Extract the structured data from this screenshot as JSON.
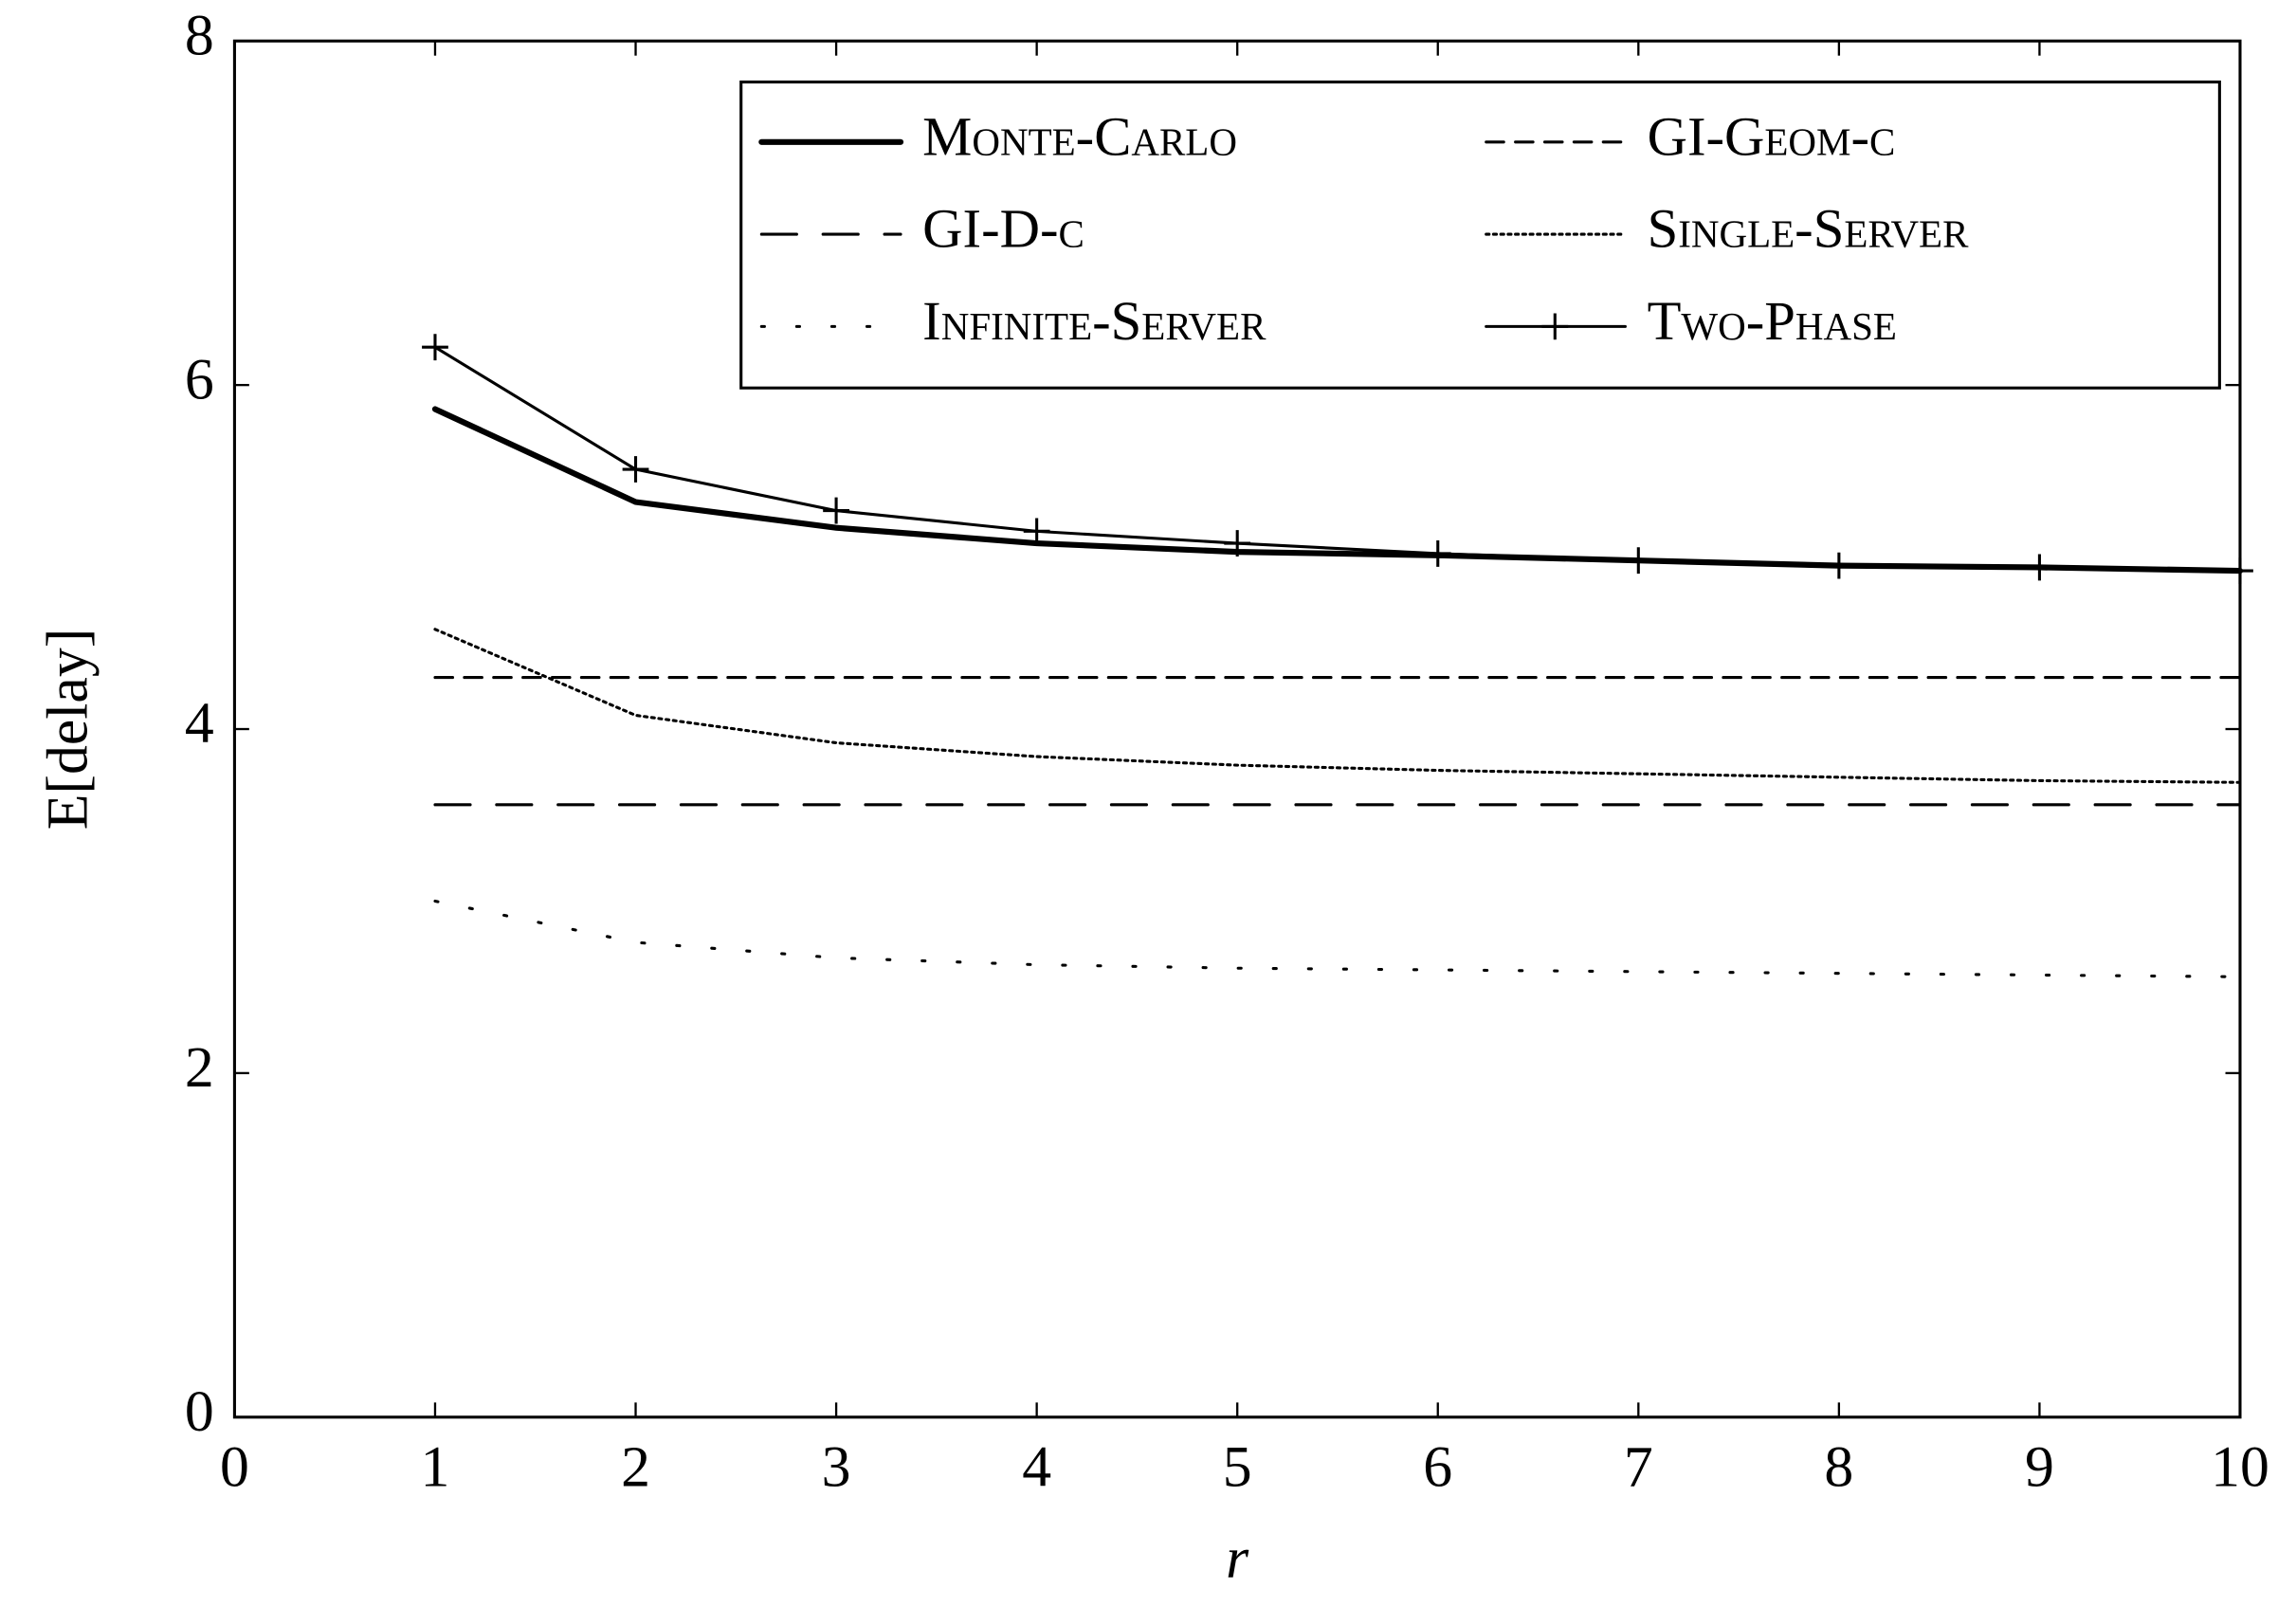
{
  "chart_data": {
    "type": "line",
    "x_label": "r",
    "y_label": "E[delay]",
    "x": [
      1,
      2,
      3,
      4,
      5,
      6,
      7,
      8,
      9,
      10
    ],
    "series": [
      {
        "name": "Monte-Carlo",
        "color": "#000000",
        "width": 4,
        "dash": "none",
        "marker": "none",
        "values": [
          5.86,
          5.32,
          5.17,
          5.08,
          5.03,
          5.01,
          4.98,
          4.95,
          4.94,
          4.92
        ]
      },
      {
        "name": "GI-Geom-c",
        "color": "#000000",
        "width": 2,
        "dash": "12 8",
        "marker": "none",
        "values": [
          4.3,
          4.3,
          4.3,
          4.3,
          4.3,
          4.3,
          4.3,
          4.3,
          4.3,
          4.3
        ]
      },
      {
        "name": "GI-D-c",
        "color": "#000000",
        "width": 2,
        "dash": "24 18",
        "marker": "none",
        "values": [
          3.56,
          3.56,
          3.56,
          3.56,
          3.56,
          3.56,
          3.56,
          3.56,
          3.56,
          3.56
        ]
      },
      {
        "name": "Single-Server",
        "color": "#000000",
        "width": 2,
        "dash": "2 3",
        "marker": "none",
        "values": [
          4.58,
          4.08,
          3.92,
          3.84,
          3.79,
          3.76,
          3.74,
          3.72,
          3.7,
          3.69
        ]
      },
      {
        "name": "Infinite-Server",
        "color": "#000000",
        "width": 2,
        "dash": "2 22",
        "marker": "none",
        "values": [
          3.0,
          2.76,
          2.67,
          2.63,
          2.61,
          2.6,
          2.59,
          2.58,
          2.57,
          2.56
        ]
      },
      {
        "name": "Two-Phase",
        "color": "#000000",
        "width": 2,
        "dash": "none",
        "marker": "plus",
        "values": [
          6.22,
          5.51,
          5.27,
          5.15,
          5.08,
          5.02,
          4.98,
          4.95,
          4.94,
          4.92
        ]
      }
    ],
    "xlim": [
      0,
      10
    ],
    "xticks": [
      0,
      1,
      2,
      3,
      4,
      5,
      6,
      7,
      8,
      9,
      10
    ],
    "ylim": [
      0,
      8
    ],
    "yticks": [
      0,
      2,
      4,
      6,
      8
    ],
    "grid": false,
    "legend_position": "north east",
    "legend_columns": 2
  }
}
